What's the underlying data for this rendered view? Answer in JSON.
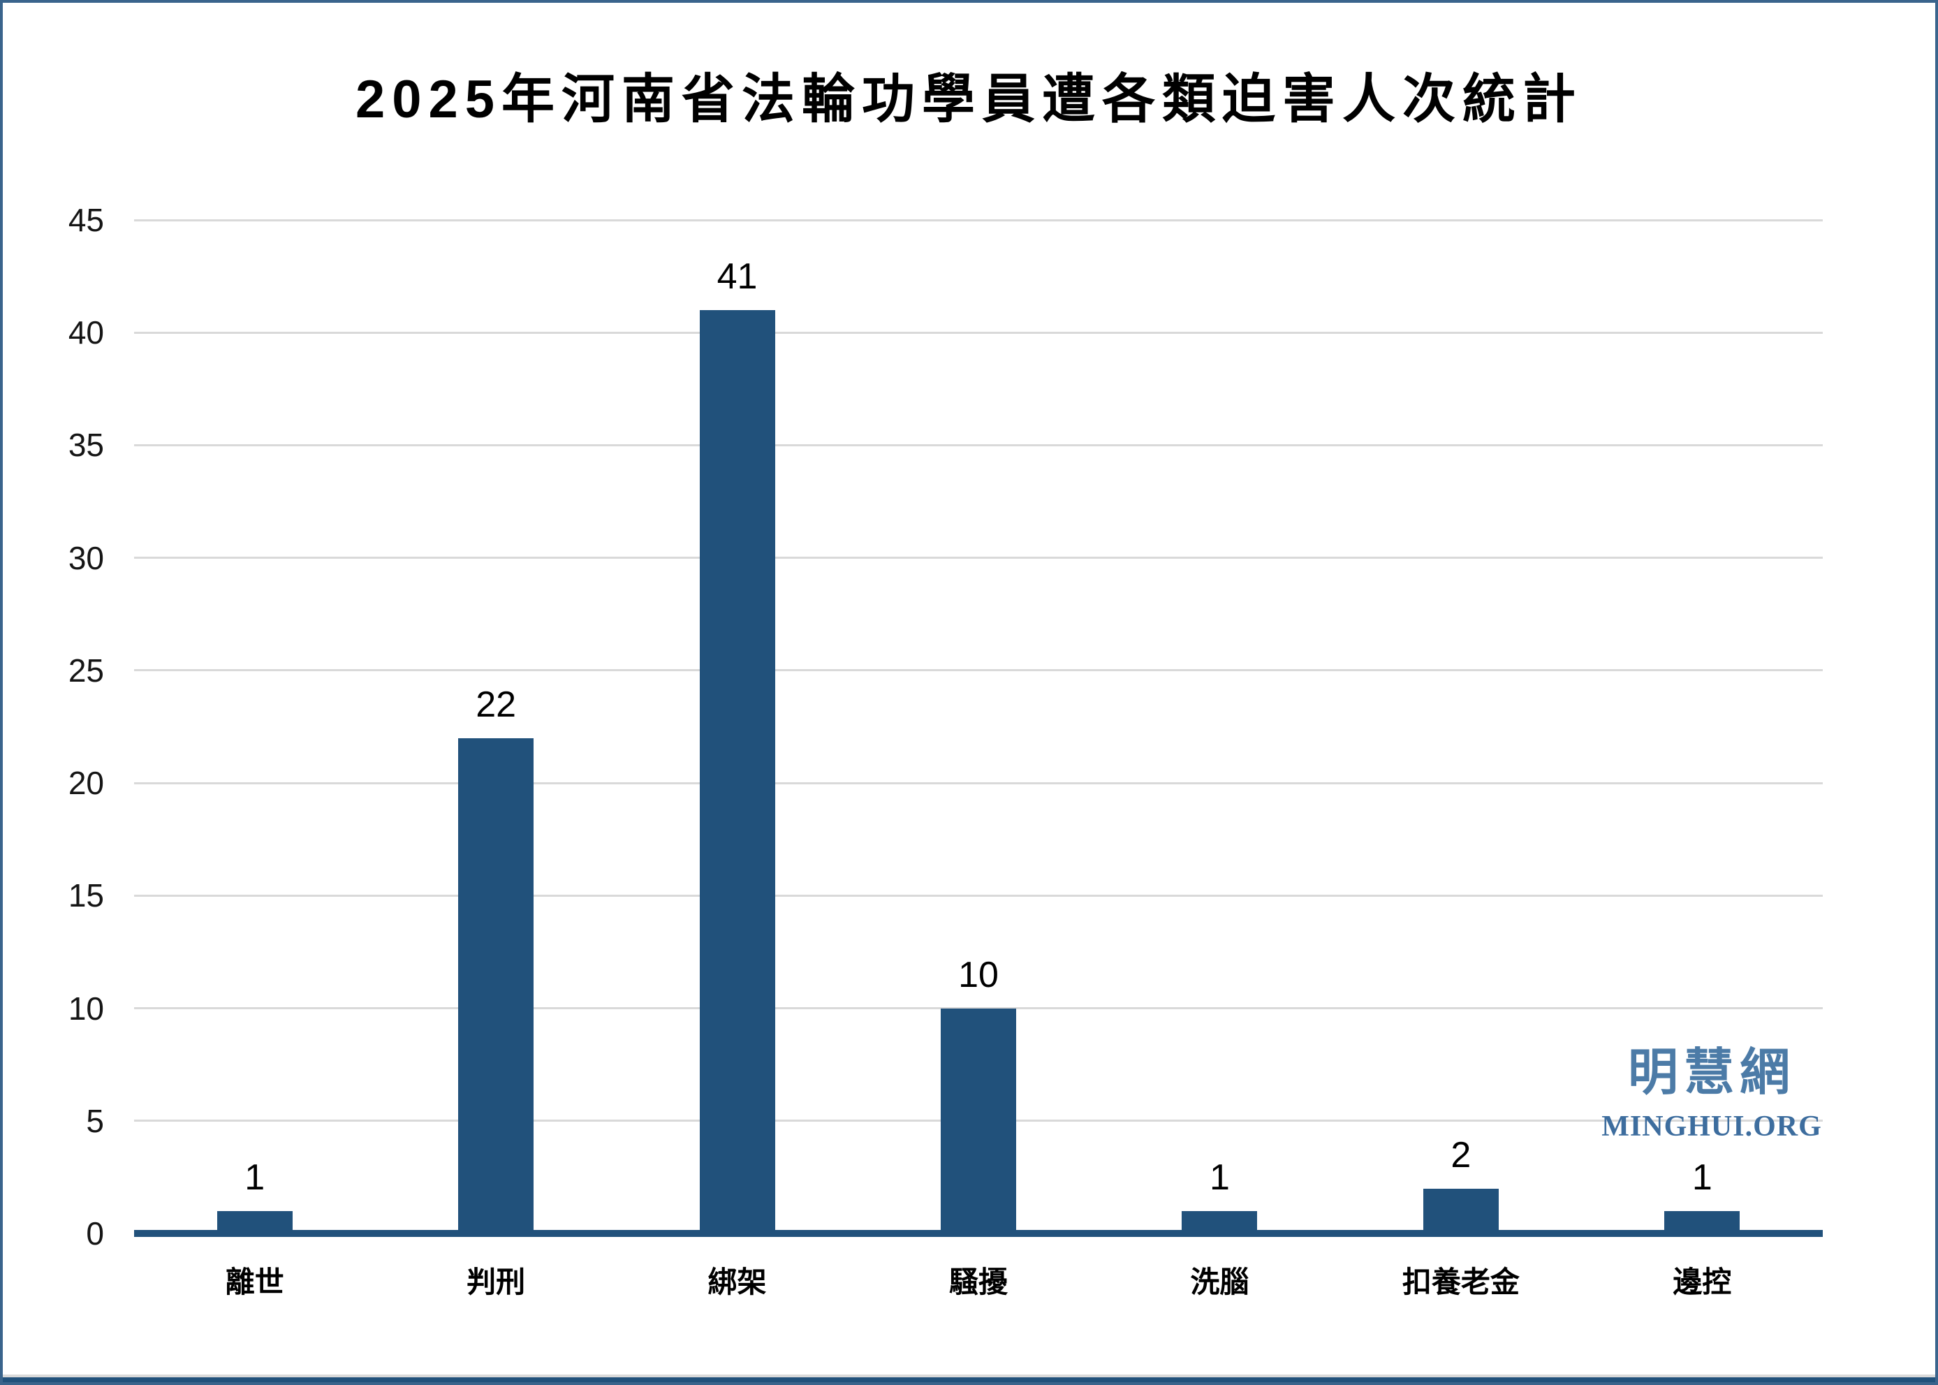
{
  "chart_data": {
    "type": "bar",
    "title": "2025年河南省法輪功學員遭各類迫害人次統計",
    "categories": [
      "離世",
      "判刑",
      "綁架",
      "騷擾",
      "洗腦",
      "扣養老金",
      "邊控"
    ],
    "values": [
      1,
      22,
      41,
      10,
      1,
      2,
      1
    ],
    "data_labels": [
      "1",
      "22",
      "41",
      "10",
      "1",
      "2",
      "1"
    ],
    "xlabel": "",
    "ylabel": "",
    "ylim": [
      0,
      45
    ],
    "yticks": [
      0,
      5,
      10,
      15,
      20,
      25,
      30,
      35,
      40,
      45
    ],
    "grid": true,
    "legend": false,
    "bar_color": "#21517B",
    "gridline_color": "#D9D9D9",
    "axis_line_color": "#21517B"
  },
  "watermark": {
    "line1": "明慧網",
    "line2": "MINGHUI.ORG",
    "color_cn": "#4C7BA7",
    "color_en": "#3D6D9E"
  },
  "frame": {
    "border_color": "#3A648C",
    "footer_strip_color": "#21517B",
    "footer_line_color": "#D9D9D9"
  }
}
